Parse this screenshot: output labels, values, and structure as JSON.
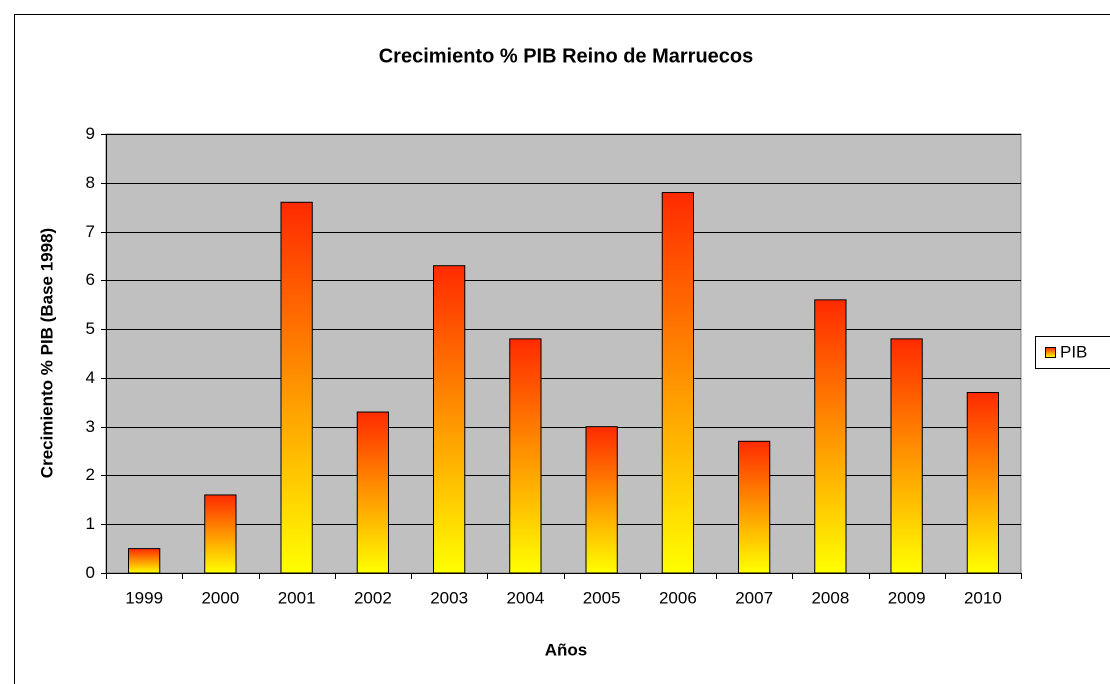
{
  "chart_data": {
    "type": "bar",
    "title": "Crecimiento % PIB Reino de Marruecos",
    "x_label": "Años",
    "y_label": "Crecimiento % PIB (Base 1998)",
    "categories": [
      "1999",
      "2000",
      "2001",
      "2002",
      "2003",
      "2004",
      "2005",
      "2006",
      "2007",
      "2008",
      "2009",
      "2010"
    ],
    "series": [
      {
        "name": "PIB",
        "color": "#ff2a00",
        "gradient_end_color": "#ffff00",
        "values": [
          0.5,
          1.6,
          7.6,
          3.3,
          6.3,
          4.8,
          3.0,
          7.8,
          2.7,
          5.6,
          4.8,
          3.7
        ]
      }
    ],
    "ylim": [
      0,
      9
    ],
    "yticks": [
      0,
      1,
      2,
      3,
      4,
      5,
      6,
      7,
      8,
      9
    ],
    "grid": true,
    "legend": "right",
    "plot_background": "#c0c0c0"
  }
}
